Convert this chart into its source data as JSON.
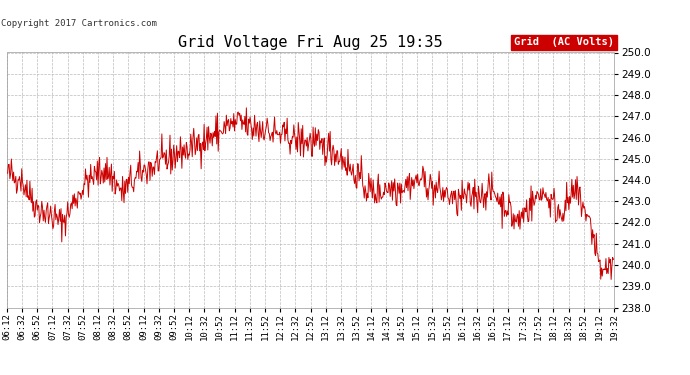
{
  "title": "Grid Voltage Fri Aug 25 19:35",
  "copyright": "Copyright 2017 Cartronics.com",
  "legend_label": "Grid  (AC Volts)",
  "legend_bg": "#cc0000",
  "legend_fg": "#ffffff",
  "line_color": "#cc0000",
  "bg_color": "#ffffff",
  "plot_bg": "#ffffff",
  "grid_color": "#bbbbbb",
  "ylim": [
    238.0,
    250.0
  ],
  "yticks": [
    238.0,
    239.0,
    240.0,
    241.0,
    242.0,
    243.0,
    244.0,
    245.0,
    246.0,
    247.0,
    248.0,
    249.0,
    250.0
  ],
  "x_labels": [
    "06:12",
    "06:32",
    "06:52",
    "07:12",
    "07:32",
    "07:52",
    "08:12",
    "08:32",
    "08:52",
    "09:12",
    "09:32",
    "09:52",
    "10:12",
    "10:32",
    "10:52",
    "11:12",
    "11:32",
    "11:52",
    "12:12",
    "12:32",
    "12:52",
    "13:12",
    "13:32",
    "13:52",
    "14:12",
    "14:32",
    "14:52",
    "15:12",
    "15:32",
    "15:52",
    "16:12",
    "16:32",
    "16:52",
    "17:12",
    "17:32",
    "17:52",
    "18:12",
    "18:32",
    "18:52",
    "19:12",
    "19:32"
  ],
  "seed": 42,
  "n_points": 820
}
